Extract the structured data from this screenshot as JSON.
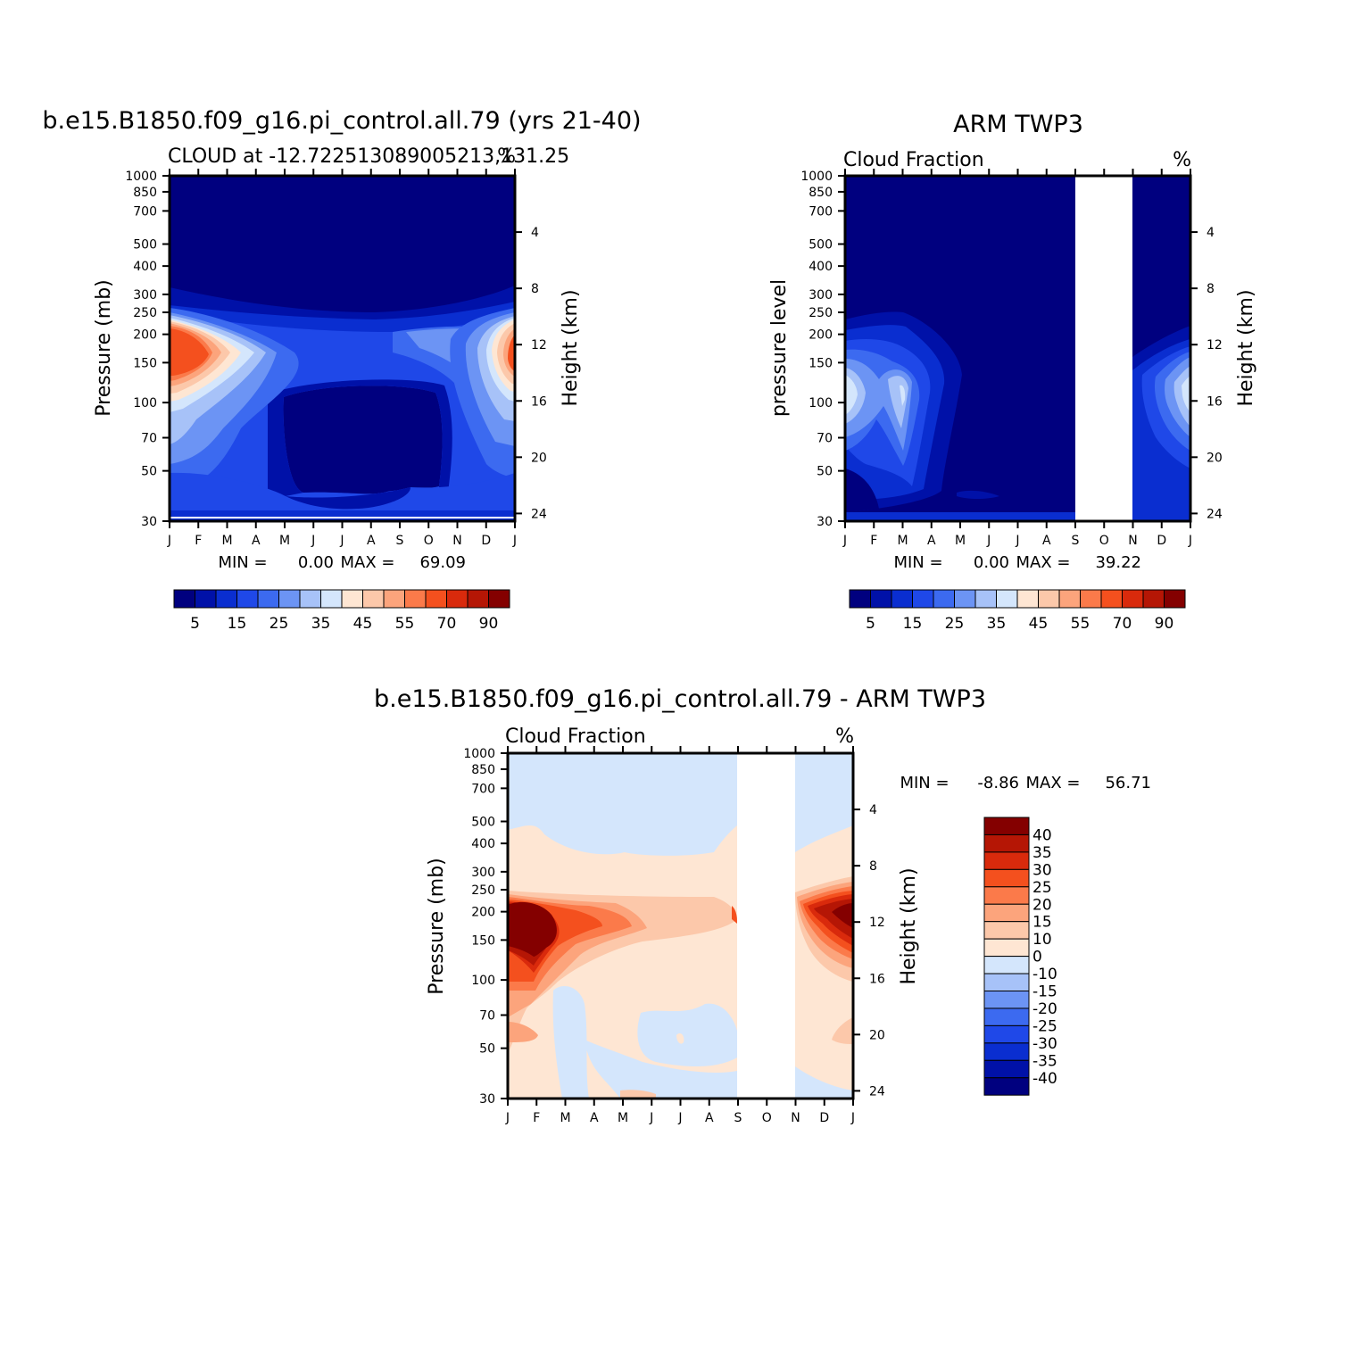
{
  "chart_data": [
    {
      "type": "heatmap",
      "title": "b.e15.B1850.f09_g16.pi_control.all.79 (yrs 21-40)",
      "subtitle_left": "CLOUD at -12.722513089005213,131.25",
      "subtitle_right": "%",
      "ylabel": "Pressure (mb)",
      "ylabel_right": "Height (km)",
      "x_ticks": [
        "J",
        "F",
        "M",
        "A",
        "M",
        "J",
        "J",
        "A",
        "S",
        "O",
        "N",
        "D",
        "J"
      ],
      "y_ticks": [
        "30",
        "50",
        "70",
        "100",
        "150",
        "200",
        "250",
        "300",
        "400",
        "500",
        "700",
        "850",
        "1000"
      ],
      "y_ticks_right": [
        "24",
        "20",
        "16",
        "12",
        "8",
        "4"
      ],
      "ylim": [
        30,
        1000
      ],
      "y_scale": "log",
      "stats": {
        "min_label": "MIN =",
        "min": "0.00",
        "max_label": "MAX =",
        "max": "69.09"
      },
      "colorbar_labels": [
        "5",
        "15",
        "25",
        "35",
        "45",
        "55",
        "70",
        "90"
      ],
      "colorbar_levels": [
        5,
        10,
        15,
        20,
        25,
        30,
        35,
        40,
        45,
        50,
        55,
        60,
        70,
        80,
        90
      ],
      "features": [
        {
          "label": "high-cloud maximum Jan-Feb near 150-200 mb",
          "peak": 69.09
        },
        {
          "label": "high-cloud maximum Dec-Jan near 150-250 mb",
          "peak": 55
        },
        {
          "label": "near-zero cloud May-Oct between 250 and 850 mb",
          "peak": 0
        }
      ]
    },
    {
      "type": "heatmap",
      "title": "ARM TWP3",
      "subtitle_left": "Cloud Fraction",
      "subtitle_right": "%",
      "ylabel": "pressure level",
      "ylabel_right": "Height (km)",
      "x_ticks": [
        "J",
        "F",
        "M",
        "A",
        "M",
        "J",
        "J",
        "A",
        "S",
        "O",
        "N",
        "D",
        "J"
      ],
      "y_ticks": [
        "30",
        "50",
        "70",
        "100",
        "150",
        "200",
        "250",
        "300",
        "400",
        "500",
        "700",
        "850",
        "1000"
      ],
      "y_ticks_right": [
        "24",
        "20",
        "16",
        "12",
        "8",
        "4"
      ],
      "ylim": [
        30,
        1000
      ],
      "y_scale": "log",
      "missing_months": [
        "S",
        "O"
      ],
      "stats": {
        "min_label": "MIN =",
        "min": "0.00",
        "max_label": "MAX =",
        "max": "39.22"
      },
      "colorbar_labels": [
        "5",
        "15",
        "25",
        "35",
        "45",
        "55",
        "70",
        "90"
      ],
      "colorbar_levels": [
        5,
        10,
        15,
        20,
        25,
        30,
        35,
        40,
        45,
        50,
        55,
        60,
        70,
        80,
        90
      ]
    },
    {
      "type": "heatmap",
      "title": "b.e15.B1850.f09_g16.pi_control.all.79 - ARM TWP3",
      "subtitle_left": "Cloud Fraction",
      "subtitle_right": "%",
      "ylabel": "Pressure (mb)",
      "ylabel_right": "Height (km)",
      "x_ticks": [
        "J",
        "F",
        "M",
        "A",
        "M",
        "J",
        "J",
        "A",
        "S",
        "O",
        "N",
        "D",
        "J"
      ],
      "y_ticks": [
        "30",
        "50",
        "70",
        "100",
        "150",
        "200",
        "250",
        "300",
        "400",
        "500",
        "700",
        "850",
        "1000"
      ],
      "y_ticks_right": [
        "24",
        "20",
        "16",
        "12",
        "8",
        "4"
      ],
      "ylim": [
        30,
        1000
      ],
      "y_scale": "log",
      "missing_months": [
        "S",
        "O"
      ],
      "stats": {
        "min_label": "MIN =",
        "min": "-8.86",
        "max_label": "MAX =",
        "max": "56.71"
      },
      "colorbar_labels": [
        "40",
        "35",
        "30",
        "25",
        "20",
        "15",
        "10",
        "0",
        "-10",
        "-15",
        "-20",
        "-25",
        "-30",
        "-35",
        "-40"
      ]
    }
  ],
  "colors": {
    "blue_scale": [
      "#00007f",
      "#0011a8",
      "#0a2ed0",
      "#1f48e8",
      "#3c6af0",
      "#6c94f4",
      "#a7c2f8",
      "#d4e6fc"
    ],
    "red_scale": [
      "#fee6d3",
      "#fcc8aa",
      "#fca47c",
      "#fb7a4a",
      "#f4501e",
      "#d92a0c",
      "#b51605",
      "#840000"
    ],
    "white": "#ffffff"
  }
}
